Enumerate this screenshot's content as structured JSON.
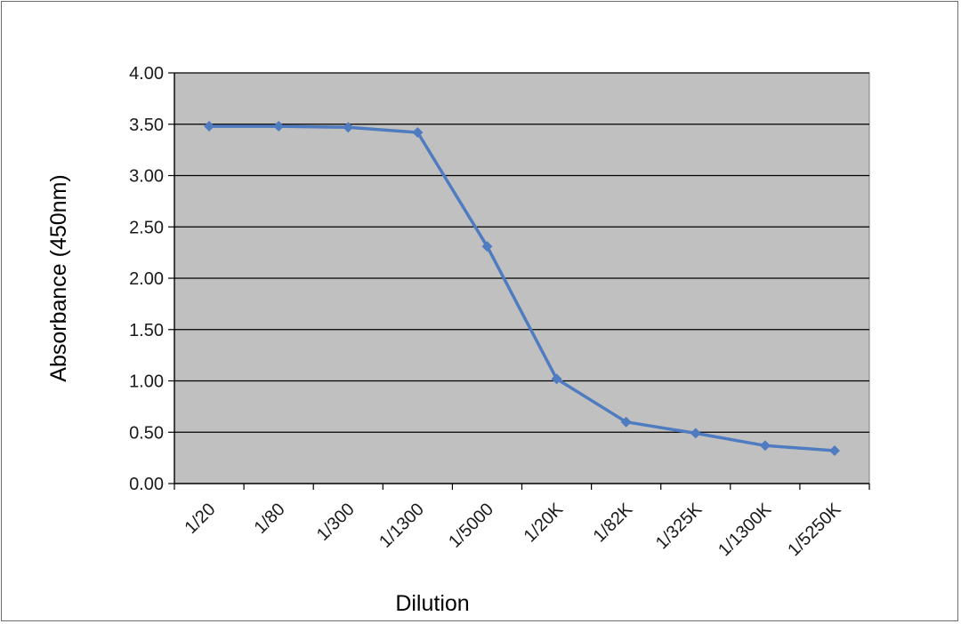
{
  "chart_data": {
    "type": "line",
    "title": "",
    "xlabel": "Dilution",
    "ylabel": "Absorbance (450nm)",
    "categories": [
      "1/20",
      "1/80",
      "1/300",
      "1/1300",
      "1/5000",
      "1/20K",
      "1/82K",
      "1/325K",
      "1/1300K",
      "1/5250K"
    ],
    "series": [
      {
        "values": [
          3.48,
          3.48,
          3.47,
          3.42,
          2.31,
          1.02,
          0.6,
          0.49,
          0.37,
          0.32
        ]
      }
    ],
    "ylim": [
      0,
      4
    ],
    "yticks": [
      "0.00",
      "0.50",
      "1.00",
      "1.50",
      "2.00",
      "2.50",
      "3.00",
      "3.50",
      "4.00"
    ],
    "grid": true,
    "legend": "none",
    "colors": {
      "plot_background": "#c0c0c0",
      "line": "#4f7cc0",
      "gridline": "#000000"
    }
  }
}
